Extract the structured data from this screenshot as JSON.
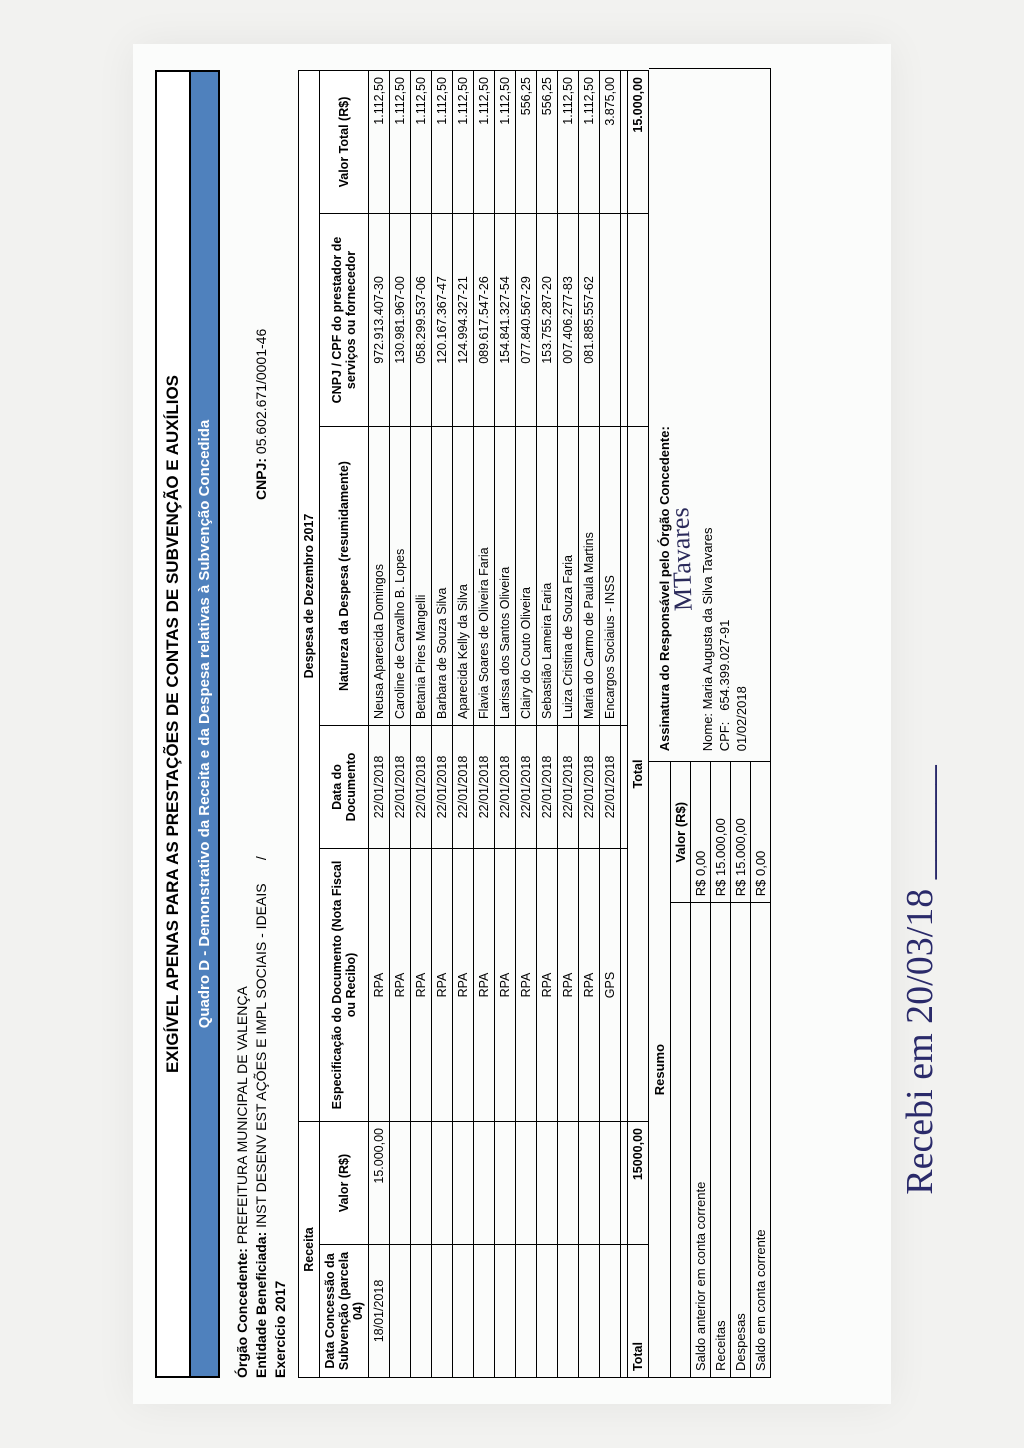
{
  "colors": {
    "band": "#4f81bd",
    "border": "#000000",
    "page_bg": "#f2f2f0",
    "sheet_bg": "#fbfcfb",
    "hand_ink": "#2a2a6a"
  },
  "typography": {
    "base_family": "Arial",
    "title_size_pt": 13,
    "body_size_pt": 9
  },
  "header": {
    "title": "EXIGÍVEL APENAS PARA AS PRESTAÇÕES DE CONTAS DE SUBVENÇÃO E AUXÍLIOS",
    "subtitle": "Quadro D - Demonstrativo da Receita e da Despesa relativas à Subvenção Concedida"
  },
  "info": {
    "orgao_label": "Órgão Concedente:",
    "orgao_value": "PREFEITURA MUNICIPAL DE VALENÇA",
    "entidade_label": "Entidade Beneficiada:",
    "entidade_value": "INST DESENV EST AÇÕES E IMPL SOCIAIS - IDEAIS",
    "entidade_sep": "/",
    "cnpj_label": "CNPJ:",
    "cnpj_value": "05.602.671/0001-46",
    "exercicio_label": "Exercício 2017"
  },
  "table": {
    "receita_header": "Receita",
    "despesa_header": "Despesa de Dezembro 2017",
    "col_data_concessao": "Data Concessão da Subvenção (parcela 04)",
    "col_valor": "Valor (R$)",
    "col_espec": "Especificação do Documento (Nota Fiscal ou Recibo)",
    "col_data_doc": "Data do Documento",
    "col_natureza": "Natureza da Despesa (resumidamente)",
    "col_cnpj": "CNPJ / CPF do prestador de serviços ou fornecedor",
    "col_valor_total": "Valor Total (R$)",
    "first_date": "18/01/2018",
    "first_valor": "15.000,00",
    "rows": [
      {
        "espec": "RPA",
        "data": "22/01/2018",
        "nat": "Neusa Aparecida Domingos",
        "doc": "972.913.407-30",
        "valor": "1.112,50"
      },
      {
        "espec": "RPA",
        "data": "22/01/2018",
        "nat": "Caroline de Carvalho B. Lopes",
        "doc": "130.981.967-00",
        "valor": "1.112,50"
      },
      {
        "espec": "RPA",
        "data": "22/01/2018",
        "nat": "Betania Pires Mangelli",
        "doc": "058.299.537-06",
        "valor": "1.112,50"
      },
      {
        "espec": "RPA",
        "data": "22/01/2018",
        "nat": "Barbara de Souza Silva",
        "doc": "120.167.367-47",
        "valor": "1.112,50"
      },
      {
        "espec": "RPA",
        "data": "22/01/2018",
        "nat": "Aparecida Kelly da Silva",
        "doc": "124.994.327-21",
        "valor": "1.112,50"
      },
      {
        "espec": "RPA",
        "data": "22/01/2018",
        "nat": "Flavia Soares de Oliveira Faria",
        "doc": "089.617.547-26",
        "valor": "1.112,50"
      },
      {
        "espec": "RPA",
        "data": "22/01/2018",
        "nat": "Larissa dos Santos Oliveira",
        "doc": "154.841.327-54",
        "valor": "1.112,50"
      },
      {
        "espec": "RPA",
        "data": "22/01/2018",
        "nat": "Clairy do Couto Oliveira",
        "doc": "077.840.567-29",
        "valor": "556,25"
      },
      {
        "espec": "RPA",
        "data": "22/01/2018",
        "nat": "Sebastião Lameira Faria",
        "doc": "153.755.287-20",
        "valor": "556,25"
      },
      {
        "espec": "RPA",
        "data": "22/01/2018",
        "nat": "Luiza Cristina de Souza Faria",
        "doc": "007.406.277-83",
        "valor": "1.112,50"
      },
      {
        "espec": "RPA",
        "data": "22/01/2018",
        "nat": "Maria do Carmo de Paula Martins",
        "doc": "081.885.557-62",
        "valor": "1.112,50"
      },
      {
        "espec": "GPS",
        "data": "22/01/2018",
        "nat": "Encargos Sociaius - INSS",
        "doc": "",
        "valor": "3.875,00"
      },
      {
        "espec": "",
        "data": "",
        "nat": "",
        "doc": "",
        "valor": ""
      }
    ],
    "total_label": "Total",
    "total_receita": "15000,00",
    "total_label2": "Total",
    "total_despesa": "15.000,00"
  },
  "resumo": {
    "title": "Resumo",
    "col_valor": "Valor (R$)",
    "rows": [
      {
        "label": "Saldo anterior em conta corrente",
        "valor": "R$ 0,00"
      },
      {
        "label": "Receitas",
        "valor": "R$ 15.000,00"
      },
      {
        "label": "Despesas",
        "valor": "R$ 15.000,00"
      },
      {
        "label": "Saldo em conta corrente",
        "valor": "R$ 0,00"
      }
    ]
  },
  "assinatura": {
    "line1": "Assinatura do Responsável pelo Órgão Concedente:",
    "nome_label": "Nome:",
    "nome_value": "Maria Augusta da Silva Tavares",
    "cpf_label": "CPF:",
    "cpf_value": "654.399.027-91",
    "data": "01/02/2018",
    "signature_scribble": "MTavares"
  },
  "handwriting": "Recebi em 20/03/18 ______"
}
